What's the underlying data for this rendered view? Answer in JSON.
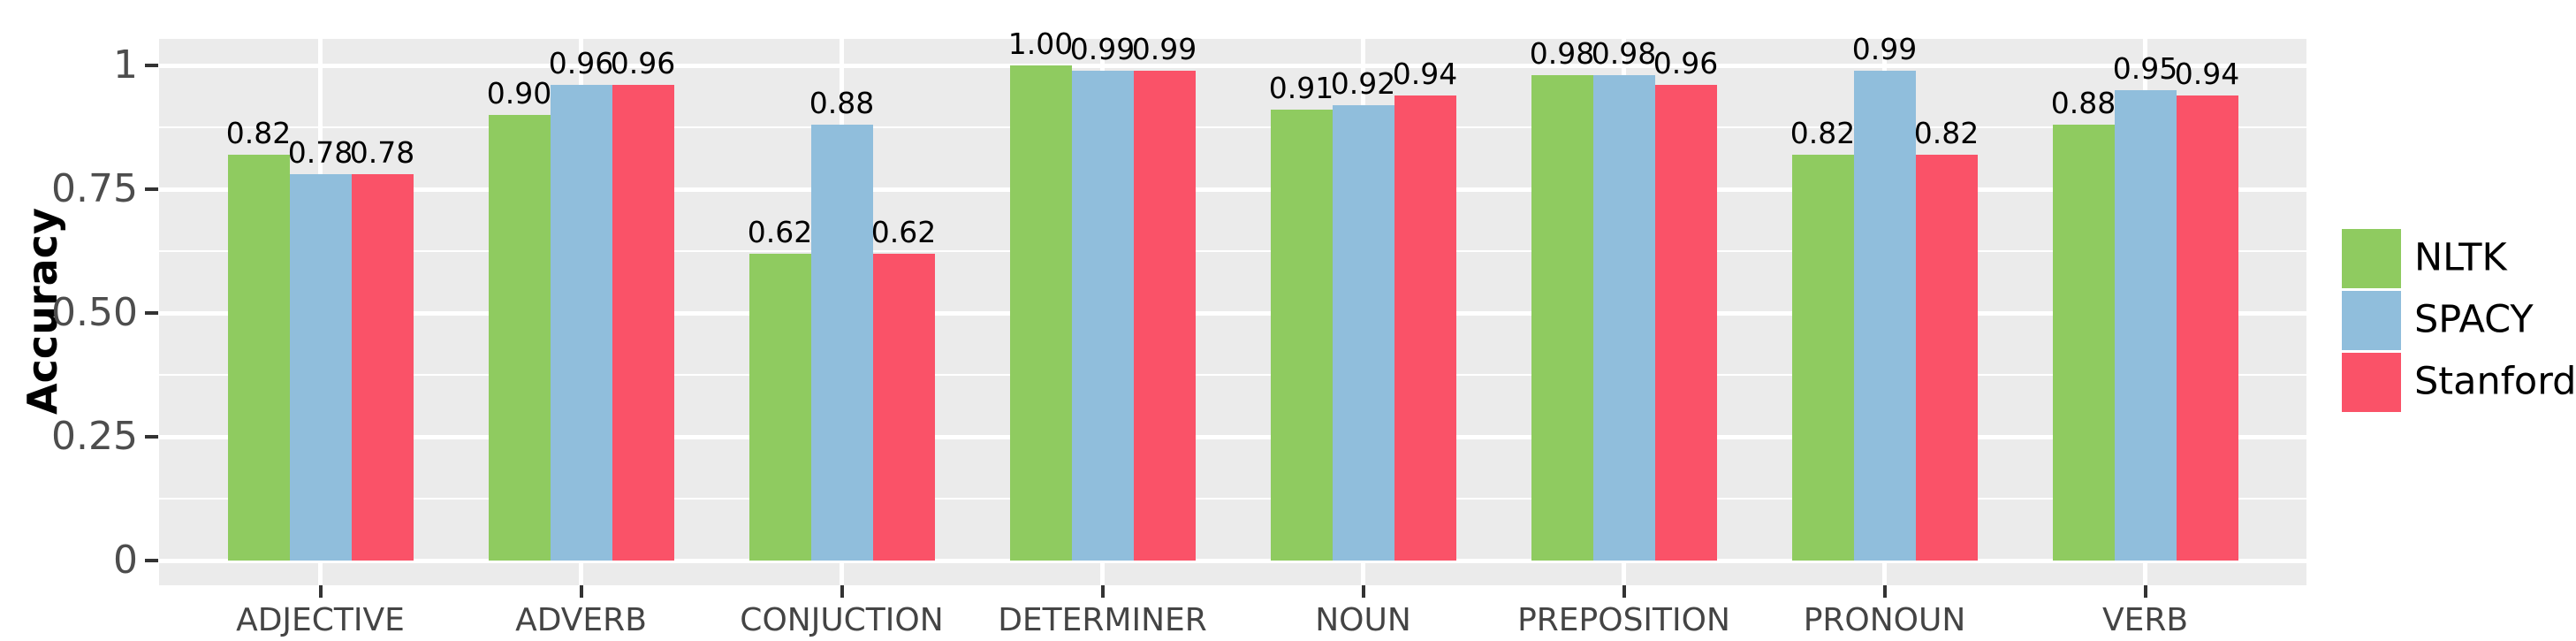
{
  "chart_data": {
    "type": "bar",
    "title": "",
    "xlabel": "",
    "ylabel": "Accuracy",
    "ylim": [
      0,
      1.05
    ],
    "grid": "on",
    "legend_position": "right",
    "categories": [
      "ADJECTIVE",
      "ADVERB",
      "CONJUCTION",
      "DETERMINER",
      "NOUN",
      "PREPOSITION",
      "PRONOUN",
      "VERB"
    ],
    "series": [
      {
        "name": "NLTK",
        "color": "#8FCB60",
        "values": [
          0.82,
          0.9,
          0.62,
          1.0,
          0.91,
          0.98,
          0.82,
          0.88
        ],
        "labels": [
          "0.82",
          "0.90",
          "0.62",
          "1.00",
          "0.91",
          "0.98",
          "0.82",
          "0.88"
        ]
      },
      {
        "name": "SPACY",
        "color": "#90BEDC",
        "values": [
          0.78,
          0.96,
          0.88,
          0.99,
          0.92,
          0.98,
          0.99,
          0.95
        ],
        "labels": [
          "0.78",
          "0.96",
          "0.88",
          "0.99",
          "0.92",
          "0.98",
          "0.99",
          "0.95"
        ]
      },
      {
        "name": "Stanford",
        "color": "#FA5268",
        "values": [
          0.78,
          0.96,
          0.62,
          0.99,
          0.94,
          0.96,
          0.82,
          0.94
        ],
        "labels": [
          "0.78",
          "0.96",
          "0.62",
          "0.99",
          "0.94",
          "0.96",
          "0.82",
          "0.94"
        ]
      }
    ],
    "yticks": [
      {
        "v": 0,
        "label": "0"
      },
      {
        "v": 0.25,
        "label": "0.25"
      },
      {
        "v": 0.5,
        "label": "0.50"
      },
      {
        "v": 0.75,
        "label": "0.75"
      },
      {
        "v": 1,
        "label": "1"
      }
    ],
    "minor_gridlines": [
      0.125,
      0.375,
      0.625,
      0.875
    ]
  },
  "colors": {
    "panel_bg": "#EBEBEB",
    "gridline": "#FFFFFF",
    "axis_text": "#4D4D4D",
    "tick_mark": "#333333",
    "bar_label": "#000000"
  }
}
